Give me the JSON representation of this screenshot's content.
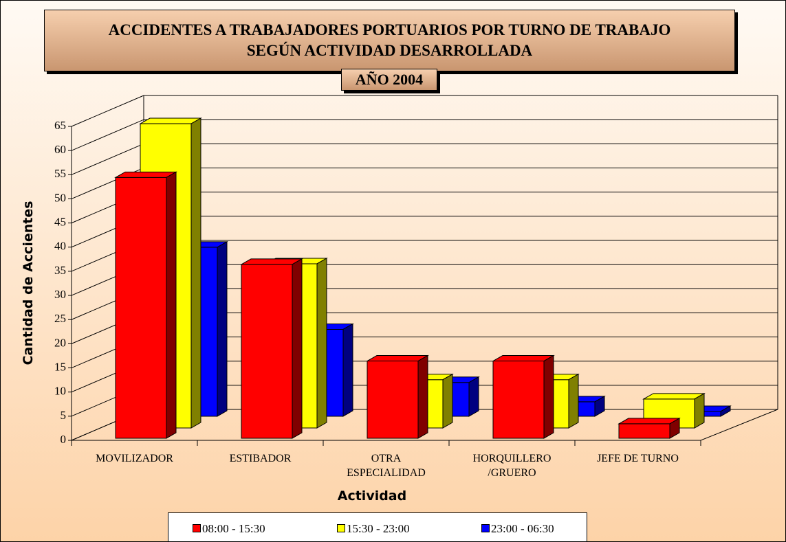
{
  "chart_data": {
    "type": "bar3d",
    "title": "ACCIDENTES A TRABAJADORES PORTUARIOS POR TURNO DE TRABAJO\nSEGÚN ACTIVIDAD DESARROLLADA",
    "subtitle": "AÑO 2004",
    "y_label": "Cantidad de Accientes",
    "x_label": "Actividad",
    "categories": [
      "MOVILIZADOR",
      "ESTIBADOR",
      "OTRA\nESPECIALIDAD",
      "HORQUILLERO\n/GRUERO",
      "JEFE DE TURNO"
    ],
    "series": [
      {
        "name": "08:00 - 15:30",
        "color": "#ff0000",
        "values": [
          54,
          36,
          16,
          16,
          3
        ]
      },
      {
        "name": "15:30 - 23:00",
        "color": "#ffff00",
        "values": [
          63,
          34,
          10,
          10,
          6
        ]
      },
      {
        "name": "23:00 - 06:30",
        "color": "#0000ff",
        "values": [
          35,
          18,
          7,
          3,
          1
        ]
      }
    ],
    "ylim": [
      0,
      65
    ],
    "yticks": [
      0,
      5,
      10,
      15,
      20,
      25,
      30,
      35,
      40,
      45,
      50,
      55,
      60,
      65
    ],
    "grid": true,
    "legend": "bottom"
  }
}
